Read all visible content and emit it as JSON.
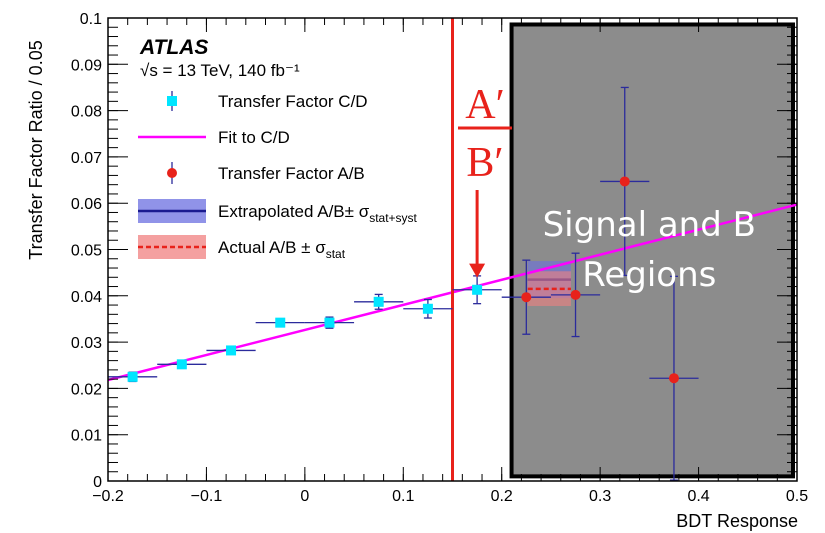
{
  "chart_data": {
    "type": "scatter",
    "xlabel": "BDT Response",
    "ylabel": "Transfer Factor Ratio / 0.05",
    "xlim": [
      -0.2,
      0.5
    ],
    "ylim": [
      0,
      0.1
    ],
    "x_ticks": [
      -0.2,
      -0.1,
      0,
      0.1,
      0.2,
      0.3,
      0.4,
      0.5
    ],
    "x_tick_labels": [
      "−0.2",
      "−0.1",
      "0",
      "0.1",
      "0.2",
      "0.3",
      "0.4",
      "0.5"
    ],
    "y_ticks": [
      0,
      0.01,
      0.02,
      0.03,
      0.04,
      0.05,
      0.06,
      0.07,
      0.08,
      0.09,
      0.1
    ],
    "y_tick_labels": [
      "0",
      "0.01",
      "0.02",
      "0.03",
      "0.04",
      "0.05",
      "0.06",
      "0.07",
      "0.08",
      "0.09",
      "0.1"
    ],
    "experiment": "ATLAS",
    "energy_label": "√s = 13 TeV, 140 fb⁻¹",
    "series": [
      {
        "name": "Transfer Factor C/D",
        "color": "#00e5ff",
        "marker": "square",
        "points": [
          {
            "x": -0.175,
            "y": 0.0225,
            "xerr": 0.025,
            "yerr": 0.001
          },
          {
            "x": -0.125,
            "y": 0.0252,
            "xerr": 0.025,
            "yerr": 0.0008
          },
          {
            "x": -0.075,
            "y": 0.0282,
            "xerr": 0.025,
            "yerr": 0.0008
          },
          {
            "x": -0.025,
            "y": 0.0342,
            "xerr": 0.025,
            "yerr": 0.0006
          },
          {
            "x": 0.025,
            "y": 0.0342,
            "xerr": 0.025,
            "yerr": 0.0012
          },
          {
            "x": 0.075,
            "y": 0.0387,
            "xerr": 0.025,
            "yerr": 0.0016
          },
          {
            "x": 0.125,
            "y": 0.0372,
            "xerr": 0.025,
            "yerr": 0.002
          },
          {
            "x": 0.175,
            "y": 0.0413,
            "xerr": 0.025,
            "yerr": 0.003
          }
        ]
      },
      {
        "name": "Fit to C/D",
        "color": "#ff00ff",
        "type": "line",
        "x": [
          -0.2,
          0.5
        ],
        "y": [
          0.0218,
          0.0597
        ]
      },
      {
        "name": "Transfer Factor A/B",
        "color": "#e8221b",
        "marker": "circle",
        "points": [
          {
            "x": 0.225,
            "y": 0.0397,
            "xerr": 0.025,
            "yerr": 0.008
          },
          {
            "x": 0.275,
            "y": 0.0402,
            "xerr": 0.025,
            "yerr": 0.009
          },
          {
            "x": 0.325,
            "y": 0.0647,
            "xerr": 0.025,
            "yerr": 0.0203
          },
          {
            "x": 0.375,
            "y": 0.0222,
            "xerr": 0.025,
            "yerr": 0.022
          }
        ]
      }
    ],
    "bands": [
      {
        "name": "Extrapolated A/B± σ",
        "sub": "stat+syst",
        "fill": "#6b6fe0",
        "line": "#1a1a90",
        "line_style": "solid",
        "x": [
          0.2,
          0.25
        ],
        "y": 0.0435,
        "y_low": 0.0395,
        "y_high": 0.0475
      },
      {
        "name": "Actual A/B ± σ",
        "sub": "stat",
        "fill": "#f08080",
        "line": "#e8221b",
        "line_style": "dashed",
        "x": [
          0.2,
          0.25
        ],
        "y": 0.0415,
        "y_low": 0.0378,
        "y_high": 0.0453
      }
    ],
    "vertical_line": {
      "x": 0.15,
      "color": "#e8221b"
    },
    "signal_region": {
      "x": [
        0.21,
        0.5
      ],
      "y": [
        0.001,
        0.0986
      ],
      "fill": "#8c8c8c",
      "label_lines": [
        "Signal and B",
        "Regions"
      ]
    },
    "annotation": {
      "numerator": "A′",
      "denominator": "B′",
      "arrow_x": 0.175,
      "arrow_y_from": 0.0535,
      "arrow_y_to": 0.0435,
      "color": "#e8221b"
    }
  }
}
